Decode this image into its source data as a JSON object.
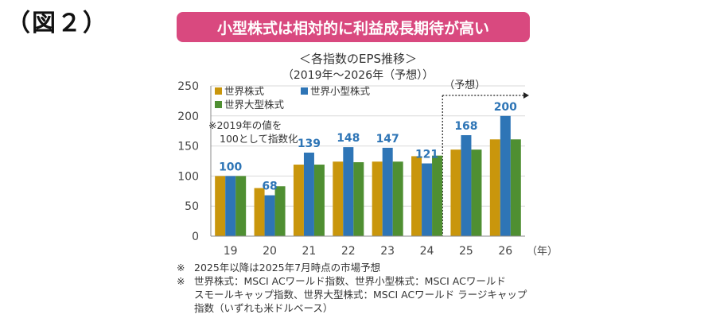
{
  "figure_label": "（図２）",
  "banner": {
    "text": "小型株式は相対的に利益成長期待が高い",
    "color": "#d9497f"
  },
  "chart_title": "＜各指数のEPS推移＞",
  "chart_subtitle": "（2019年～2026年（予想））",
  "forecast_label": "（予想）",
  "note_inline": [
    "※2019年の値を",
    "100として指数化"
  ],
  "unit_label": "（年）",
  "notes": {
    "mark": "※",
    "line1": "2025年以降は2025年7月時点の市場予想",
    "line2": "世界株式：MSCI ACワールド指数、世界小型株式：MSCI ACワールド",
    "line3": "スモールキャップ指数、世界大型株式：MSCI ACワールド ラージキャップ",
    "line4": "指数（いずれも米ドルベース）"
  },
  "chart_data": {
    "type": "bar",
    "categories": [
      "19",
      "20",
      "21",
      "22",
      "23",
      "24",
      "25",
      "26"
    ],
    "ylim": [
      0,
      250
    ],
    "yticks": [
      0,
      50,
      100,
      150,
      200,
      250
    ],
    "forecast_from_index": 6,
    "series": [
      {
        "name": "世界株式",
        "color": "#c9960c",
        "values": [
          100,
          80,
          119,
          124,
          124,
          133,
          144,
          161
        ]
      },
      {
        "name": "世界小型株式",
        "color": "#2e75b6",
        "values": [
          100,
          68,
          139,
          148,
          147,
          121,
          168,
          200
        ],
        "labeled": true
      },
      {
        "name": "世界大型株式",
        "color": "#4f8f32",
        "values": [
          100,
          83,
          119,
          123,
          124,
          134,
          144,
          161
        ]
      }
    ]
  }
}
